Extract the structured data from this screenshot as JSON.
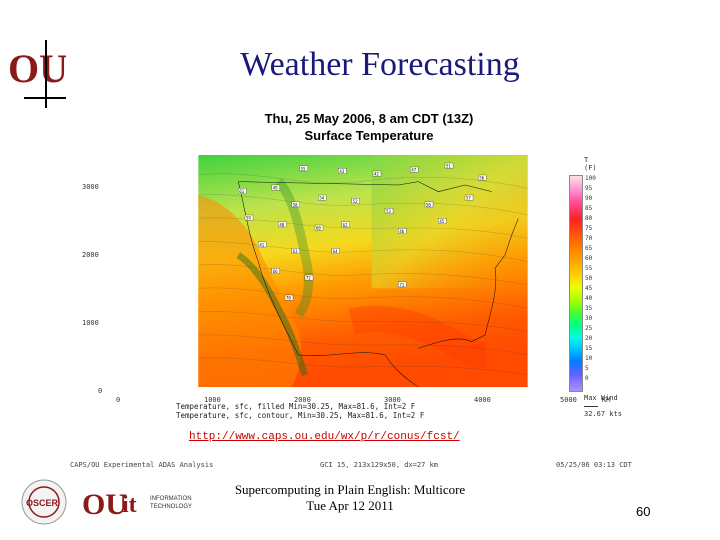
{
  "slide": {
    "title": "Weather Forecasting",
    "footer_line1": "Supercomputing in Plain English: Multicore",
    "footer_line2": "Tue Apr 12 2011",
    "page_number": "60",
    "url": "http://www.caps.ou.edu/wx/p/r/conus/fcst/"
  },
  "map": {
    "title_line1": "Thu, 25 May 2006, 8 am CDT (13Z)",
    "title_line2": "Surface Temperature",
    "unit_line1": "T",
    "unit_line2": "(F)",
    "y_ticks": [
      "3000",
      "2000",
      "1000",
      "0"
    ],
    "x_ticks": [
      "0",
      "1000",
      "2000",
      "3000",
      "4000",
      "5000",
      "KM"
    ],
    "colorbar_labels": [
      "100",
      "95",
      "90",
      "85",
      "80",
      "75",
      "70",
      "65",
      "60",
      "55",
      "50",
      "45",
      "40",
      "35",
      "30",
      "25",
      "20",
      "15",
      "10",
      "5",
      "0"
    ],
    "max_wind_label": "Max Wind",
    "max_wind_value": "32.67 kts",
    "field_line1": "Temperature, sfc, filled Min=30.25, Max=81.6, Int=2 F",
    "field_line2": "Temperature, sfc, contour, Min=30.25, Max=81.6, Int=2 F",
    "caps_left": "CAPS/OU Experimental ADAS Analysis",
    "caps_mid": "GCI 15, 213x129x50, dx=27 km",
    "caps_right": "05/25/06 03:13 CDT",
    "station_labels": [
      "55",
      "43",
      "42",
      "47",
      "51",
      "56",
      "49",
      "61",
      "58",
      "54",
      "52",
      "53",
      "50",
      "57",
      "59",
      "48",
      "60",
      "62",
      "46",
      "45",
      "41",
      "63",
      "64",
      "66",
      "72",
      "71",
      "70"
    ]
  },
  "colors": {
    "title": "#1a1a7a",
    "url": "#cc0000",
    "ou_crimson": "#8b1a1a"
  }
}
